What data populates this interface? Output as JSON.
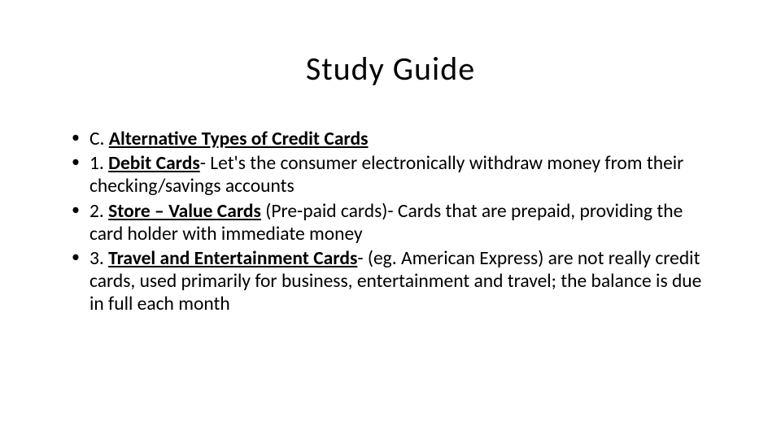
{
  "title": "Study Guide",
  "items": [
    {
      "prefix": "C. ",
      "term": "Alternative Types of Credit Cards",
      "rest": ""
    },
    {
      "prefix": "1. ",
      "term": "Debit Cards",
      "rest": "- Let's the consumer electronically  withdraw money from their checking/savings  accounts"
    },
    {
      "prefix": "2. ",
      "term": "Store – Value Cards",
      "rest": " (Pre-paid cards)- Cards  that are prepaid, providing the card holder with  immediate money"
    },
    {
      "prefix": "3. ",
      "term": "Travel and Entertainment Cards",
      "rest": "- (eg. American  Express) are not really credit cards, used primarily  for business, entertainment and travel; the  balance is due in full each month"
    }
  ],
  "styling": {
    "background_color": "#ffffff",
    "text_color": "#000000",
    "title_fontsize": 40,
    "title_fontweight": 300,
    "body_fontsize": 23.5,
    "font_family": "Calibri"
  }
}
